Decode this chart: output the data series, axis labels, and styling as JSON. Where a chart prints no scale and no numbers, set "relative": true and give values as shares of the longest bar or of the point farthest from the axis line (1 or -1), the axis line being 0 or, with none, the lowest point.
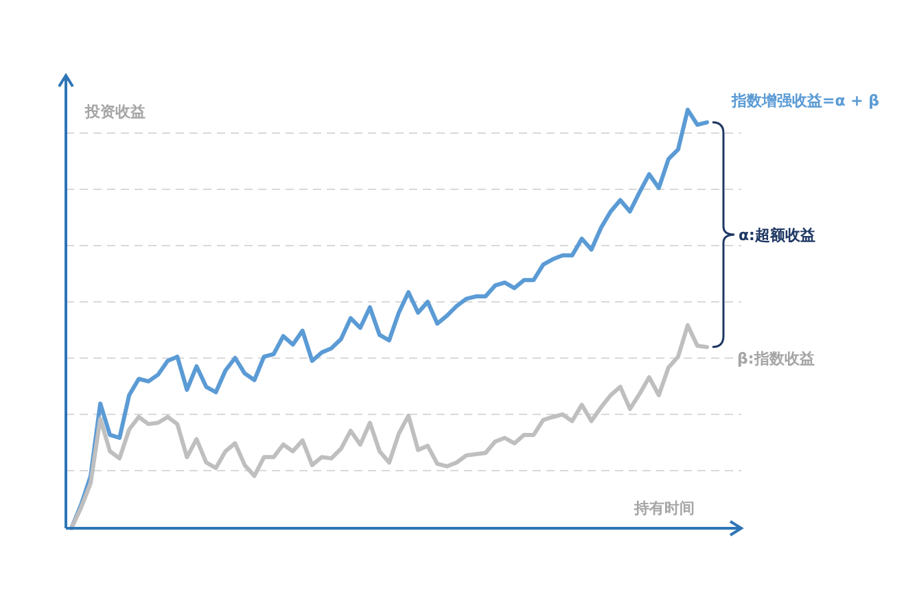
{
  "chart_data": {
    "type": "line",
    "relative": true,
    "grid": "y",
    "xlabel": "持有时间",
    "ylabel": "投资收益",
    "categories": [
      null,
      null,
      null,
      null,
      null,
      null,
      null,
      null,
      null,
      null,
      null,
      null,
      null,
      null,
      null,
      null,
      null,
      null,
      null,
      null,
      null,
      null,
      null,
      null,
      null,
      null,
      null,
      null,
      null,
      null,
      null,
      null,
      null,
      null,
      null,
      null,
      null,
      null,
      null,
      null,
      null,
      null,
      null,
      null,
      null,
      null,
      null,
      null,
      null,
      null,
      null,
      null,
      null,
      null,
      null,
      null,
      null,
      null,
      null,
      null,
      null,
      null,
      null,
      null,
      null,
      null,
      null
    ],
    "series": [
      {
        "name": "指数增强收益=α + β",
        "color": "#5b9bd5",
        "values": [
          0,
          0.056,
          0.125,
          0.298,
          0.223,
          0.216,
          0.318,
          0.357,
          0.351,
          0.367,
          0.4,
          0.41,
          0.331,
          0.387,
          0.338,
          0.325,
          0.377,
          0.407,
          0.37,
          0.354,
          0.41,
          0.416,
          0.459,
          0.439,
          0.472,
          0.4,
          0.42,
          0.43,
          0.452,
          0.502,
          0.479,
          0.528,
          0.462,
          0.449,
          0.515,
          0.564,
          0.515,
          0.541,
          0.489,
          0.508,
          0.531,
          0.548,
          0.554,
          0.554,
          0.58,
          0.587,
          0.574,
          0.593,
          0.593,
          0.63,
          0.643,
          0.652,
          0.652,
          0.692,
          0.666,
          0.718,
          0.757,
          0.784,
          0.757,
          0.803,
          0.846,
          0.813,
          0.882,
          0.905,
          1,
          0.964,
          0.97
        ]
      },
      {
        "name": "β:指数收益",
        "color": "#bfbfbf",
        "values": [
          0,
          0.049,
          0.108,
          0.262,
          0.184,
          0.167,
          0.236,
          0.266,
          0.249,
          0.252,
          0.266,
          0.249,
          0.17,
          0.213,
          0.157,
          0.144,
          0.184,
          0.203,
          0.151,
          0.125,
          0.17,
          0.17,
          0.2,
          0.184,
          0.21,
          0.151,
          0.17,
          0.167,
          0.19,
          0.233,
          0.2,
          0.252,
          0.184,
          0.157,
          0.226,
          0.269,
          0.187,
          0.197,
          0.154,
          0.148,
          0.157,
          0.174,
          0.177,
          0.18,
          0.207,
          0.216,
          0.203,
          0.223,
          0.223,
          0.259,
          0.266,
          0.272,
          0.256,
          0.295,
          0.256,
          0.289,
          0.318,
          0.338,
          0.285,
          0.321,
          0.361,
          0.318,
          0.384,
          0.41,
          0.485,
          0.436,
          0.433
        ]
      }
    ],
    "annotations": [
      "α:超额收益"
    ],
    "marker": "none",
    "line_style": "solid"
  }
}
